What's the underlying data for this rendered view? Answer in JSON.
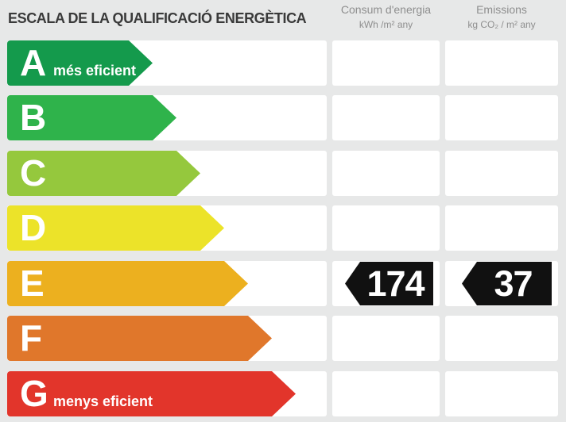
{
  "title": "ESCALA DE LA QUALIFICACIÓ ENERGÈTICA",
  "columns": {
    "consumption": {
      "title": "Consum d'energia",
      "unit": "kWh /m²  any"
    },
    "emissions": {
      "title": "Emissions",
      "unit": "kg CO₂  / m²  any"
    }
  },
  "scale": {
    "rows": [
      {
        "letter": "A",
        "note": "més eficient",
        "color": "#149a4c"
      },
      {
        "letter": "B",
        "note": "",
        "color": "#2fb34b"
      },
      {
        "letter": "C",
        "note": "",
        "color": "#95c83d"
      },
      {
        "letter": "D",
        "note": "",
        "color": "#ece329"
      },
      {
        "letter": "E",
        "note": "",
        "color": "#ecb01f"
      },
      {
        "letter": "F",
        "note": "",
        "color": "#e0772b"
      },
      {
        "letter": "G",
        "note": "menys eficient",
        "color": "#e2352b"
      }
    ]
  },
  "result": {
    "rating": "E",
    "consumption_value": "174",
    "emissions_value": "37",
    "tag_color": "#111111"
  },
  "chart_data": {
    "type": "bar",
    "title": "ESCALA DE LA QUALIFICACIÓ ENERGÈTICA",
    "categories": [
      "A",
      "B",
      "C",
      "D",
      "E",
      "F",
      "G"
    ],
    "band_relative_lengths": [
      183,
      213,
      243,
      273,
      303,
      333,
      363
    ],
    "band_colors": [
      "#149a4c",
      "#2fb34b",
      "#95c83d",
      "#ece329",
      "#ecb01f",
      "#e0772b",
      "#e2352b"
    ],
    "annotations": {
      "A": "més eficient",
      "G": "menys eficient"
    },
    "columns": [
      "Consum d'energia (kWh /m² any)",
      "Emissions (kg CO₂ / m² any)"
    ],
    "rating": "E",
    "values": {
      "consumption_kwh_m2_any": 174,
      "emissions_kg_co2_m2_any": 37
    },
    "legend_position": "none",
    "grid": false
  }
}
